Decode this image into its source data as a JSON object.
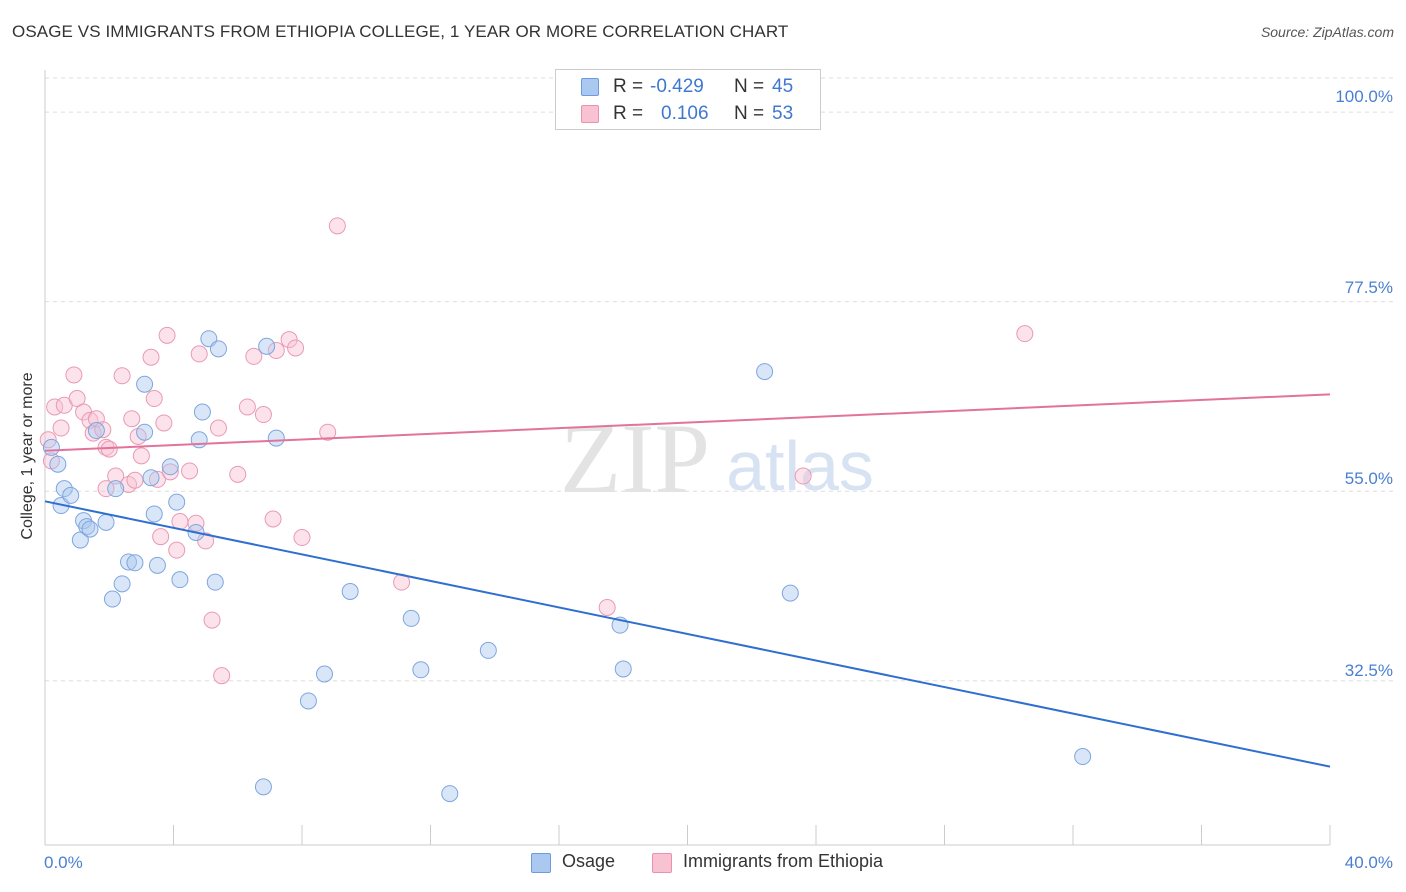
{
  "title": "OSAGE VS IMMIGRANTS FROM ETHIOPIA COLLEGE, 1 YEAR OR MORE CORRELATION CHART",
  "source": "Source: ZipAtlas.com",
  "watermark": {
    "zip": "ZIP",
    "atlas": "atlas"
  },
  "stats": {
    "rows": [
      {
        "r_label": "R =",
        "r_value": "-0.429",
        "n_label": "N =",
        "n_value": "45",
        "color": "#aac8f0",
        "border": "#6d9be0"
      },
      {
        "r_label": "R =",
        "r_value": "0.106",
        "n_label": "N =",
        "n_value": "53",
        "color": "#f8c2d3",
        "border": "#e893ad"
      }
    ]
  },
  "legend": {
    "osage": "Osage",
    "ethiopia": "Immigrants from Ethiopia"
  },
  "colors": {
    "osage_fill": "rgba(170,200,240,0.45)",
    "osage_stroke": "#7ea6df",
    "osage_line": "#2f6fd0",
    "eth_fill": "rgba(248,194,211,0.45)",
    "eth_stroke": "#e99ab3",
    "eth_line": "#e2739a",
    "axis_text": "#4a7fd0",
    "grid": "#dddddd"
  },
  "chart_data": {
    "type": "scatter",
    "title": "OSAGE VS IMMIGRANTS FROM ETHIOPIA COLLEGE, 1 YEAR OR MORE CORRELATION CHART",
    "xlabel": "",
    "ylabel": "College, 1 year or more",
    "xlim": [
      0,
      40
    ],
    "ylim": [
      13,
      105
    ],
    "x_tick_labels": [
      "0.0%",
      "40.0%"
    ],
    "y_ticks": [
      100,
      77.5,
      55,
      32.5
    ],
    "y_tick_labels": [
      "100.0%",
      "77.5%",
      "55.0%",
      "32.5%"
    ],
    "series": [
      {
        "name": "Osage",
        "x": [
          0.2,
          0.4,
          0.5,
          0.6,
          0.8,
          1.1,
          1.2,
          1.3,
          1.4,
          1.6,
          1.9,
          2.1,
          2.2,
          2.4,
          2.6,
          2.8,
          3.1,
          3.1,
          3.3,
          3.4,
          3.5,
          3.9,
          4.1,
          4.2,
          4.7,
          4.8,
          4.9,
          5.1,
          5.3,
          5.4,
          6.8,
          6.9,
          7.2,
          8.2,
          8.7,
          9.5,
          11.4,
          11.7,
          12.6,
          13.8,
          17.9,
          18.0,
          22.4,
          23.2,
          32.3
        ],
        "y": [
          60.2,
          58.2,
          53.3,
          55.3,
          54.5,
          49.2,
          51.5,
          50.8,
          50.5,
          62.2,
          51.3,
          42.2,
          55.3,
          44.0,
          46.6,
          46.5,
          62.0,
          67.7,
          56.6,
          52.3,
          46.2,
          57.9,
          53.7,
          44.5,
          50.1,
          61.1,
          64.4,
          73.1,
          44.2,
          71.9,
          19.9,
          72.2,
          61.3,
          30.1,
          33.3,
          43.1,
          39.9,
          33.8,
          19.1,
          36.1,
          39.1,
          33.9,
          69.2,
          42.9,
          23.5
        ]
      },
      {
        "name": "Immigrants from Ethiopia",
        "x": [
          0.1,
          0.2,
          0.3,
          0.5,
          0.6,
          0.9,
          1.0,
          1.2,
          1.4,
          1.5,
          1.6,
          1.8,
          1.9,
          1.9,
          2.0,
          2.2,
          2.4,
          2.6,
          2.7,
          2.8,
          2.9,
          3.0,
          3.3,
          3.4,
          3.5,
          3.6,
          3.7,
          3.8,
          3.9,
          4.1,
          4.2,
          4.5,
          4.7,
          4.8,
          5.0,
          5.2,
          5.4,
          5.5,
          6.0,
          6.3,
          6.5,
          6.8,
          7.1,
          7.2,
          7.6,
          7.8,
          8.0,
          8.8,
          9.1,
          11.1,
          17.5,
          23.6,
          30.5
        ],
        "y": [
          61.1,
          58.6,
          65.0,
          62.5,
          65.2,
          68.8,
          66.0,
          64.4,
          63.4,
          61.9,
          63.6,
          62.3,
          60.2,
          55.3,
          60.0,
          56.8,
          68.7,
          55.8,
          63.6,
          56.3,
          61.5,
          59.2,
          70.9,
          66.0,
          56.4,
          49.6,
          63.1,
          73.5,
          57.3,
          48.0,
          51.4,
          57.4,
          51.2,
          71.3,
          49.1,
          39.7,
          62.5,
          33.1,
          57.0,
          65.0,
          71.0,
          64.1,
          51.7,
          71.7,
          73.0,
          72.0,
          49.5,
          62.0,
          86.5,
          44.2,
          41.2,
          56.8,
          73.7
        ]
      }
    ],
    "trend_lines": [
      {
        "name": "Osage",
        "x": [
          0,
          40
        ],
        "y": [
          53.8,
          22.3
        ]
      },
      {
        "name": "Immigrants from Ethiopia",
        "x": [
          0,
          40
        ],
        "y": [
          59.8,
          66.5
        ]
      }
    ]
  }
}
